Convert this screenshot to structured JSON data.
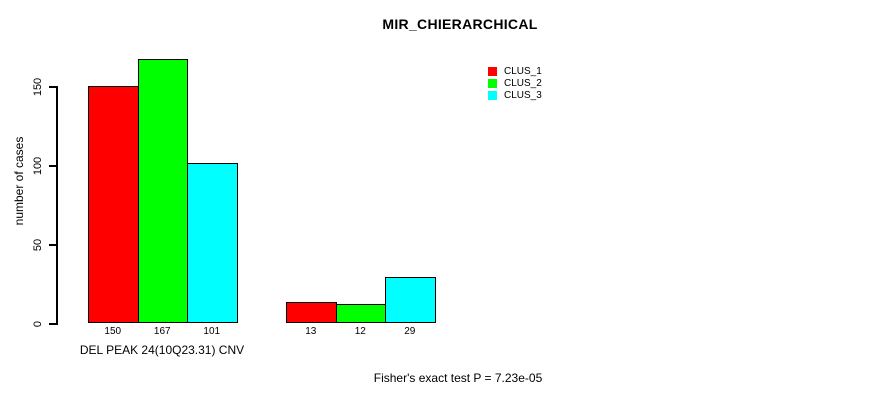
{
  "chart_data": {
    "type": "bar",
    "title": "MIR_CHIERARCHICAL",
    "ylabel": "number of cases",
    "xlabel": "DEL PEAK 24(10Q23.31) CNV",
    "annotation": "Fisher's exact test P = 7.23e-05",
    "ylim": [
      0,
      167
    ],
    "yticks": [
      0,
      50,
      100,
      150
    ],
    "grid": false,
    "legend_position": "top-right",
    "xlabel_position": "under-first-group",
    "series": [
      {
        "name": "CLUS_1",
        "color": "#ff0000",
        "values": [
          150,
          13
        ]
      },
      {
        "name": "CLUS_2",
        "color": "#00ff00",
        "values": [
          167,
          12
        ]
      },
      {
        "name": "CLUS_3",
        "color": "#00ffff",
        "values": [
          101,
          29
        ]
      }
    ],
    "bar_labels": [
      [
        "150",
        "167",
        "101"
      ],
      [
        "13",
        "12",
        "29"
      ]
    ]
  },
  "colors": {
    "background": "#ffffff",
    "axis": "#000000",
    "text": "#000000"
  }
}
